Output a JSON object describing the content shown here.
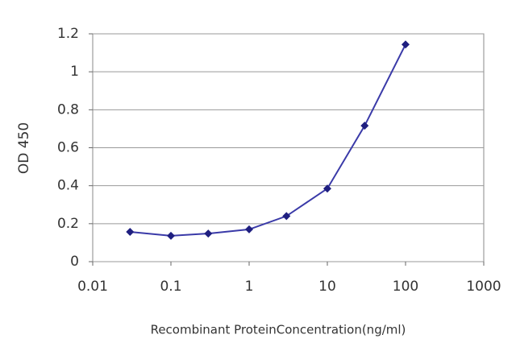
{
  "chart_data": {
    "type": "line",
    "x_label": "Recombinant ProteinConcentration(ng/ml)",
    "y_label": "OD 450",
    "x_scale": "log",
    "grid": true,
    "series": [
      {
        "color": "#3a3aa8",
        "x": [
          0.03,
          0.1,
          0.3,
          1,
          3,
          10,
          30,
          100
        ],
        "values": [
          0.157,
          0.136,
          0.148,
          0.17,
          0.24,
          0.385,
          0.716,
          1.144
        ]
      }
    ],
    "xlim": [
      0.01,
      1000
    ],
    "xticks": [
      0.01,
      0.1,
      1,
      10,
      100,
      1000
    ],
    "ylim": [
      0,
      1.2
    ],
    "yticks": [
      0,
      0.2,
      0.4,
      0.6,
      0.8,
      1,
      1.2
    ]
  }
}
